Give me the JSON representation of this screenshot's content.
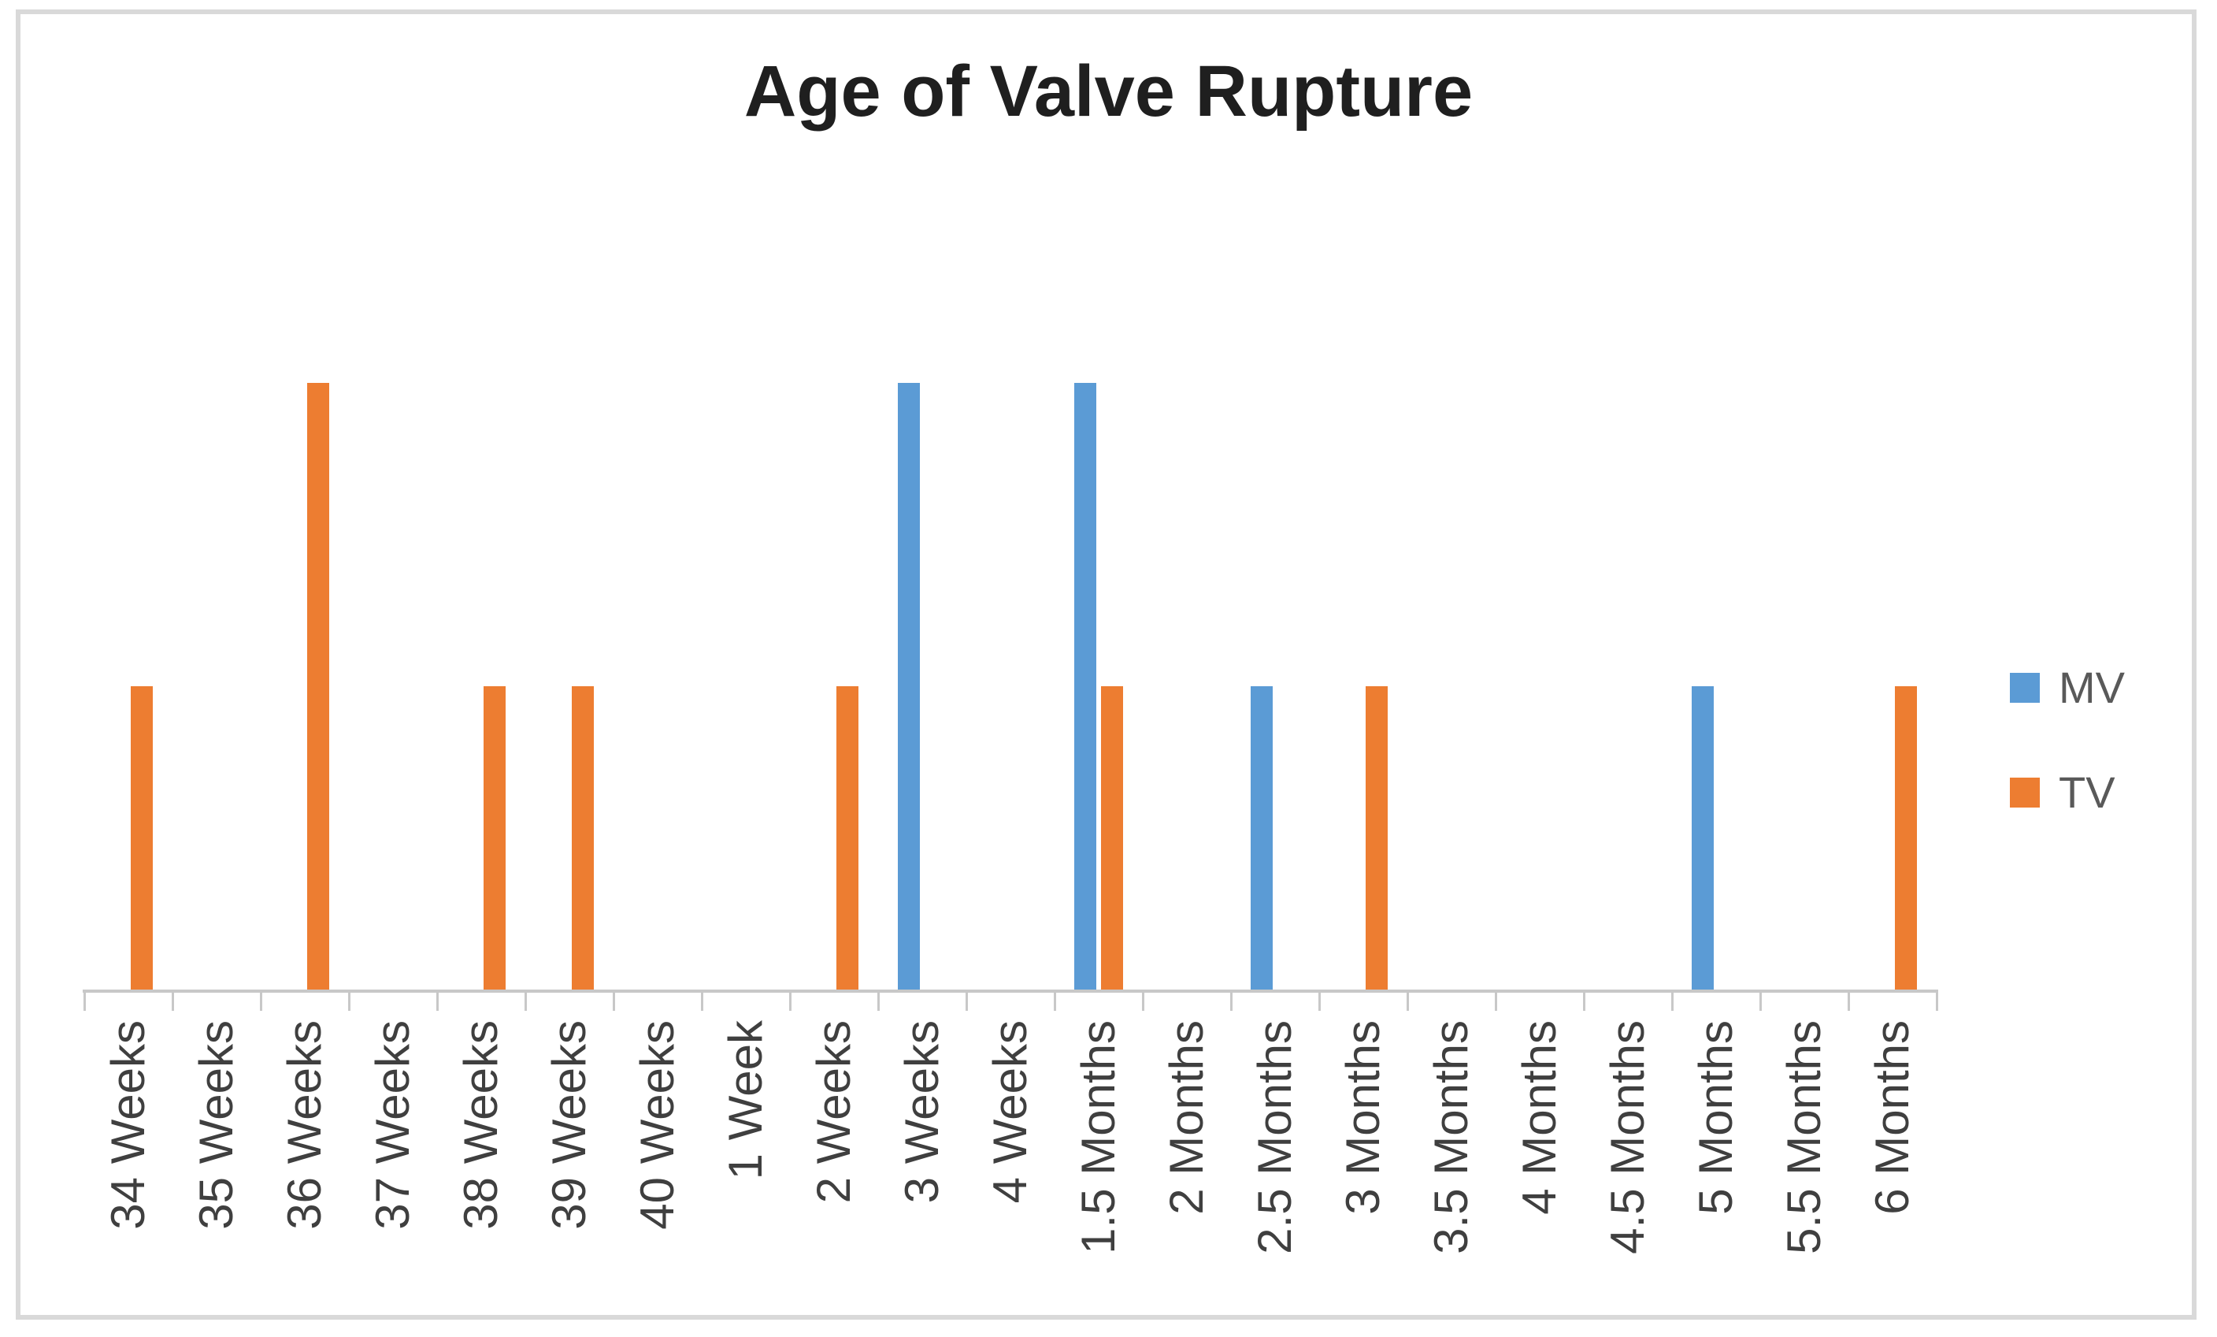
{
  "chart": {
    "title": "Age of Valve Rupture"
  },
  "legend": {
    "items": [
      {
        "label": "MV",
        "color": "#5B9BD5"
      },
      {
        "label": "TV",
        "color": "#ED7D31"
      }
    ]
  },
  "chart_data": {
    "type": "bar",
    "title": "Age of Valve Rupture",
    "categories": [
      "34 Weeks",
      "35 Weeks",
      "36 Weeks",
      "37 Weeks",
      "38 Weeks",
      "39 Weeks",
      "40 Weeks",
      "1 Week",
      "2 Weeks",
      "3 Weeks",
      "4 Weeks",
      "1.5 Months",
      "2 Months",
      "2.5 Months",
      "3 Months",
      "3.5 Months",
      "4 Months",
      "4.5 Months",
      "5 Months",
      "5.5 Months",
      "6 Months"
    ],
    "series": [
      {
        "name": "MV",
        "color": "#5B9BD5",
        "values": [
          0,
          0,
          0,
          0,
          0,
          0,
          0,
          0,
          0,
          2,
          0,
          2,
          0,
          1,
          0,
          0,
          0,
          0,
          1,
          0,
          0
        ]
      },
      {
        "name": "TV",
        "color": "#ED7D31",
        "values": [
          1,
          0,
          2,
          0,
          1,
          1,
          0,
          0,
          1,
          0,
          0,
          1,
          0,
          0,
          1,
          0,
          0,
          0,
          0,
          0,
          1
        ]
      }
    ],
    "xlabel": "",
    "ylabel": "",
    "ylim": [
      0,
      2.5
    ],
    "y_axis_visible": false,
    "gridlines": false,
    "legend_position": "right",
    "x_tick_rotation": -90
  },
  "colors": {
    "axis": "#C8C8C8",
    "x_labels": "#3F3F3F",
    "legend_text": "#595959",
    "title_text": "#1F1F1F",
    "frame_border": "#D9D9D9",
    "background": "#FFFFFF"
  }
}
